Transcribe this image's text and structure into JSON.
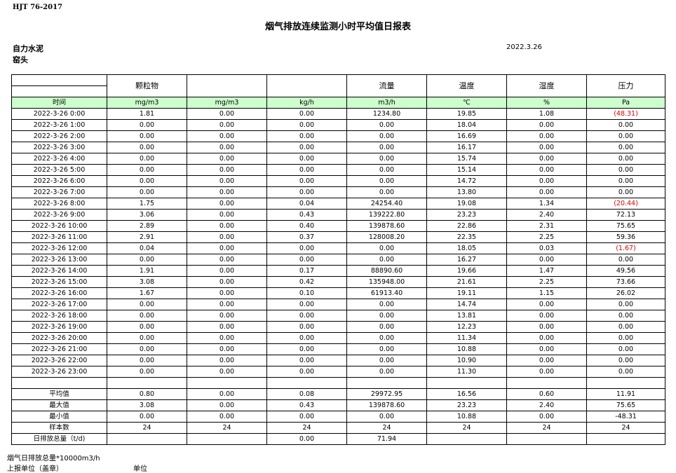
{
  "header": {
    "standard": "HJT  76-2017",
    "title": "烟气排放连续监测小时平均值日报表",
    "company": "自力水泥",
    "site": "窑头",
    "date": "2022.3.26"
  },
  "table": {
    "column_names": [
      "",
      "颗粒物",
      "",
      "",
      "流量",
      "温度",
      "湿度",
      "压力"
    ],
    "units": [
      "时间",
      "mg/m3",
      "mg/m3",
      "kg/h",
      "m3/h",
      "℃",
      "%",
      "Pa"
    ],
    "rows": [
      [
        "2022-3-26 0:00",
        "1.81",
        "0.00",
        "0.00",
        "1234.80",
        "19.85",
        "1.08",
        "(48.31)"
      ],
      [
        "2022-3-26 1:00",
        "0.00",
        "0.00",
        "0.00",
        "0.00",
        "18.04",
        "0.00",
        "0.00"
      ],
      [
        "2022-3-26 2:00",
        "0.00",
        "0.00",
        "0.00",
        "0.00",
        "16.69",
        "0.00",
        "0.00"
      ],
      [
        "2022-3-26 3:00",
        "0.00",
        "0.00",
        "0.00",
        "0.00",
        "16.17",
        "0.00",
        "0.00"
      ],
      [
        "2022-3-26 4:00",
        "0.00",
        "0.00",
        "0.00",
        "0.00",
        "15.74",
        "0.00",
        "0.00"
      ],
      [
        "2022-3-26 5:00",
        "0.00",
        "0.00",
        "0.00",
        "0.00",
        "15.14",
        "0.00",
        "0.00"
      ],
      [
        "2022-3-26 6:00",
        "0.00",
        "0.00",
        "0.00",
        "0.00",
        "14.72",
        "0.00",
        "0.00"
      ],
      [
        "2022-3-26 7:00",
        "0.00",
        "0.00",
        "0.00",
        "0.00",
        "13.80",
        "0.00",
        "0.00"
      ],
      [
        "2022-3-26 8:00",
        "1.75",
        "0.00",
        "0.04",
        "24254.40",
        "19.08",
        "1.34",
        "(20.44)"
      ],
      [
        "2022-3-26 9:00",
        "3.06",
        "0.00",
        "0.43",
        "139222.80",
        "23.23",
        "2.40",
        "72.13"
      ],
      [
        "2022-3-26 10:00",
        "2.89",
        "0.00",
        "0.40",
        "139878.60",
        "22.86",
        "2.31",
        "75.65"
      ],
      [
        "2022-3-26 11:00",
        "2.91",
        "0.00",
        "0.37",
        "128008.20",
        "22.35",
        "2.25",
        "59.36"
      ],
      [
        "2022-3-26 12:00",
        "0.04",
        "0.00",
        "0.00",
        "0.00",
        "18.05",
        "0.03",
        "(1.67)"
      ],
      [
        "2022-3-26 13:00",
        "0.00",
        "0.00",
        "0.00",
        "0.00",
        "16.27",
        "0.00",
        "0.00"
      ],
      [
        "2022-3-26 14:00",
        "1.91",
        "0.00",
        "0.17",
        "88890.60",
        "19.66",
        "1.47",
        "49.56"
      ],
      [
        "2022-3-26 15:00",
        "3.08",
        "0.00",
        "0.42",
        "135948.00",
        "21.61",
        "2.25",
        "73.66"
      ],
      [
        "2022-3-26 16:00",
        "1.67",
        "0.00",
        "0.10",
        "61913.40",
        "19.11",
        "1.15",
        "26.02"
      ],
      [
        "2022-3-26 17:00",
        "0.00",
        "0.00",
        "0.00",
        "0.00",
        "14.74",
        "0.00",
        "0.00"
      ],
      [
        "2022-3-26 18:00",
        "0.00",
        "0.00",
        "0.00",
        "0.00",
        "13.81",
        "0.00",
        "0.00"
      ],
      [
        "2022-3-26 19:00",
        "0.00",
        "0.00",
        "0.00",
        "0.00",
        "12.23",
        "0.00",
        "0.00"
      ],
      [
        "2022-3-26 20:00",
        "0.00",
        "0.00",
        "0.00",
        "0.00",
        "11.34",
        "0.00",
        "0.00"
      ],
      [
        "2022-3-26 21:00",
        "0.00",
        "0.00",
        "0.00",
        "0.00",
        "10.88",
        "0.00",
        "0.00"
      ],
      [
        "2022-3-26 22:00",
        "0.00",
        "0.00",
        "0.00",
        "0.00",
        "10.90",
        "0.00",
        "0.00"
      ],
      [
        "2022-3-26 23:00",
        "0.00",
        "0.00",
        "0.00",
        "0.00",
        "11.30",
        "0.00",
        "0.00"
      ]
    ],
    "summary": [
      [
        "平均值",
        "0.80",
        "0.00",
        "0.08",
        "29972.95",
        "16.56",
        "0.60",
        "11.91"
      ],
      [
        "最大值",
        "3.08",
        "0.00",
        "0.43",
        "139878.60",
        "23.23",
        "2.40",
        "75.65"
      ],
      [
        "最小值",
        "0.00",
        "0.00",
        "0.00",
        "0.00",
        "10.88",
        "0.00",
        "-48.31"
      ],
      [
        "样本数",
        "24",
        "24",
        "24",
        "24",
        "24",
        "24",
        "24"
      ],
      [
        "日排放总量（t/d)",
        "",
        "",
        "0.00",
        "71.94",
        "",
        "",
        ""
      ]
    ],
    "negative_color": "#e00000",
    "units_row_color": "#ccffcc"
  },
  "footer": {
    "note": "烟气日排放总量*10000m3/h",
    "reporter_label": "上报单位（盖章）",
    "unit_label": "单位"
  }
}
